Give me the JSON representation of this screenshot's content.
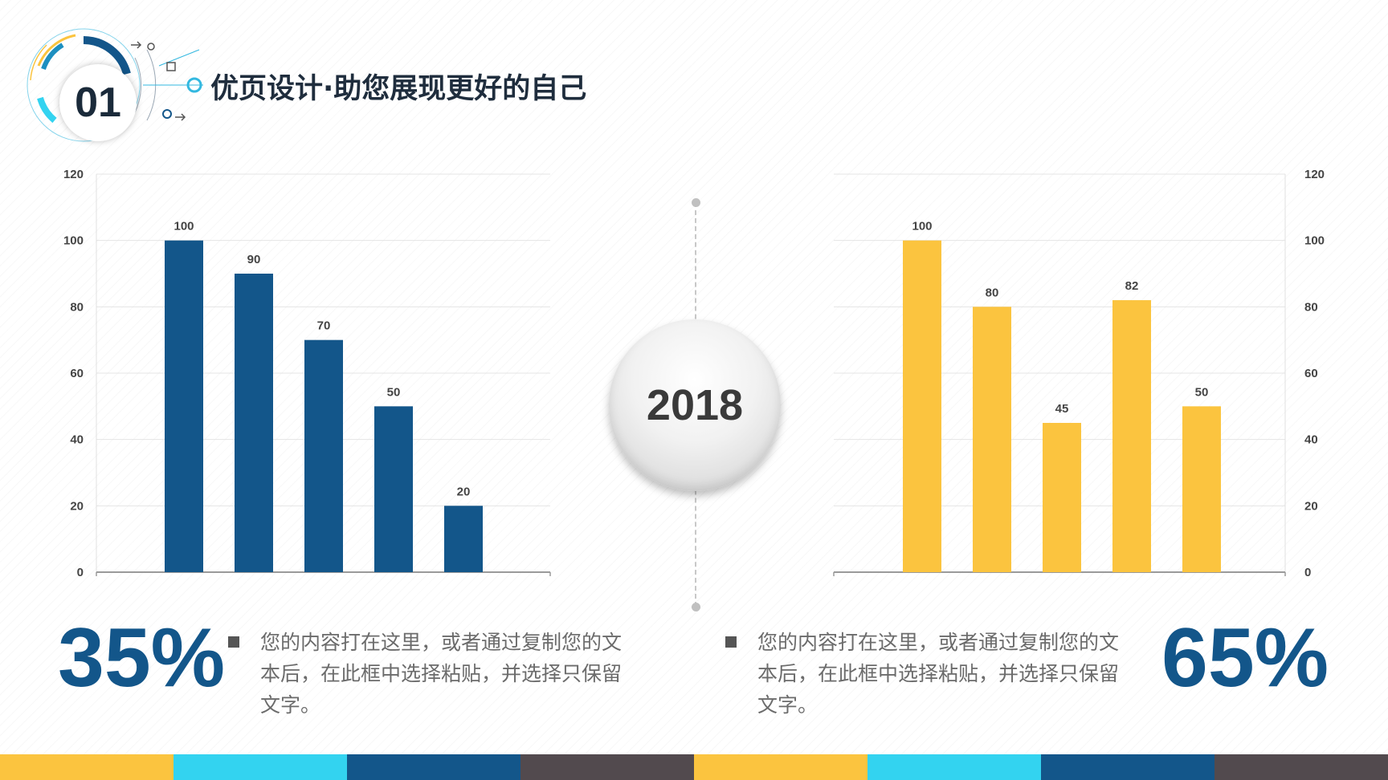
{
  "header": {
    "badge_number": "01",
    "title": "优页设计·助您展现更好的自己"
  },
  "center": {
    "year": "2018"
  },
  "left_panel": {
    "percent": "35%",
    "description": "您的内容打在这里，或者通过复制您的文本后，在此框中选择粘贴，并选择只保留文字。"
  },
  "right_panel": {
    "percent": "65%",
    "description": "您的内容打在这里，或者通过复制您的文本后，在此框中选择粘贴，并选择只保留文字。"
  },
  "colors": {
    "blue": "#13568a",
    "yellow": "#fbc43f",
    "cyan": "#33d3f0",
    "dark": "#524a4e"
  },
  "footer": {
    "segments": [
      "#fbc43f",
      "#33d3f0",
      "#13568a",
      "#524a4e",
      "#fbc43f",
      "#33d3f0",
      "#13568a",
      "#524a4e"
    ]
  },
  "chart_data": [
    {
      "type": "bar",
      "values": [
        100,
        90,
        70,
        50,
        20
      ],
      "ylim": [
        0,
        120
      ],
      "yticks": [
        0,
        20,
        40,
        60,
        80,
        100,
        120
      ],
      "y_axis_side": "left",
      "color": "#13568a",
      "grid": true
    },
    {
      "type": "bar",
      "values": [
        100,
        80,
        45,
        82,
        50
      ],
      "ylim": [
        0,
        120
      ],
      "yticks": [
        0,
        20,
        40,
        60,
        80,
        100,
        120
      ],
      "y_axis_side": "right",
      "color": "#fbc43f",
      "grid": true
    }
  ]
}
